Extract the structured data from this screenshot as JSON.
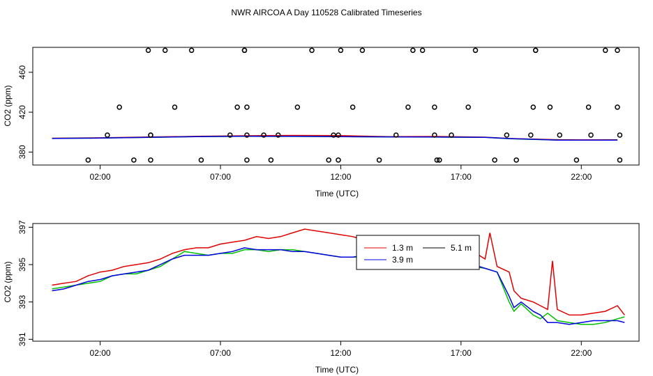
{
  "title": "NWR AIRCOA A  Day 110528  Calibrated Timeseries",
  "colors": {
    "series_1": "#e00000",
    "series_2": "#00c000",
    "series_3": "#0000e0",
    "points": "#000000",
    "axes": "#000000"
  },
  "chart_data": [
    {
      "type": "scatter",
      "xlabel": "Time (UTC)",
      "ylabel": "CO2 (ppm)",
      "x_ticks": [
        "02:00",
        "07:00",
        "12:00",
        "17:00",
        "22:00"
      ],
      "y_ticks": [
        "380",
        "420",
        "460"
      ],
      "xlim_hours": [
        -0.8,
        24.4
      ],
      "ylim": [
        367,
        485
      ],
      "points_x_hours": [
        1.5,
        2.3,
        2.8,
        3.4,
        4.0,
        4.1,
        4.1,
        4.1,
        4.7,
        5.1,
        5.8,
        6.2,
        7.4,
        7.7,
        8.0,
        8.0,
        8.1,
        8.1,
        8.1,
        8.8,
        9.1,
        9.4,
        10.2,
        10.8,
        11.5,
        11.7,
        11.9,
        11.9,
        12.0,
        12.5,
        12.9,
        13.6,
        14.3,
        14.8,
        15.0,
        15.4,
        15.9,
        15.9,
        16.0,
        16.1,
        16.6,
        17.3,
        17.6,
        18.4,
        18.9,
        19.3,
        19.9,
        20.0,
        20.1,
        20.1,
        20.7,
        21.1,
        21.8,
        22.3,
        22.4,
        23.0,
        23.5,
        23.5,
        23.6,
        23.6
      ],
      "points_y": [
        372,
        397,
        425,
        372,
        482,
        397,
        372,
        397,
        482,
        425,
        482,
        372,
        397,
        425,
        482,
        482,
        425,
        397,
        372,
        397,
        372,
        397,
        425,
        482,
        372,
        397,
        372,
        397,
        482,
        425,
        482,
        372,
        397,
        425,
        482,
        482,
        425,
        397,
        372,
        372,
        397,
        425,
        482,
        372,
        397,
        372,
        397,
        425,
        482,
        482,
        425,
        397,
        372,
        425,
        397,
        482,
        482,
        425,
        397,
        372
      ],
      "series": [
        {
          "x_hours": [
            0.0,
            2.0,
            4.0,
            6.0,
            8.0,
            10.0,
            12.0,
            14.0,
            16.0,
            18.0,
            19.0,
            20.0,
            21.0,
            22.0,
            23.5
          ],
          "values": [
            393.9,
            394.3,
            395.1,
            395.8,
            396.3,
            396.7,
            396.5,
            395.5,
            395.6,
            394.9,
            393.6,
            393.0,
            392.4,
            392.2,
            392.3
          ]
        },
        {
          "x_hours": [
            0.0,
            2.0,
            4.0,
            6.0,
            8.0,
            10.0,
            12.0,
            14.0,
            16.0,
            18.0,
            19.0,
            20.0,
            21.0,
            22.0,
            23.5
          ],
          "values": [
            393.7,
            394.0,
            394.8,
            395.5,
            395.8,
            395.7,
            395.4,
            395.2,
            395.0,
            394.8,
            393.3,
            392.6,
            392.1,
            392.0,
            392.1
          ]
        },
        {
          "x_hours": [
            0.0,
            2.0,
            4.0,
            6.0,
            8.0,
            10.0,
            12.0,
            14.0,
            16.0,
            18.0,
            19.0,
            20.0,
            21.0,
            22.0,
            23.5
          ],
          "values": [
            393.6,
            394.0,
            394.8,
            395.5,
            395.9,
            395.8,
            395.4,
            395.2,
            395.1,
            394.8,
            393.5,
            392.8,
            392.0,
            391.9,
            392.0
          ]
        }
      ]
    },
    {
      "type": "line",
      "xlabel": "Time (UTC)",
      "ylabel": "CO2 (ppm)",
      "x_ticks": [
        "02:00",
        "07:00",
        "12:00",
        "17:00",
        "22:00"
      ],
      "y_ticks": [
        "391",
        "393",
        "395",
        "397"
      ],
      "xlim_hours": [
        -0.8,
        24.4
      ],
      "ylim": [
        390.9,
        397.2
      ],
      "legend": {
        "placement": "center-right",
        "entries": [
          "1.3 m",
          "5.1 m",
          "3.9 m"
        ]
      },
      "series": [
        {
          "name": "1.3 m",
          "x_hours": [
            0.0,
            0.5,
            1.0,
            1.5,
            2.0,
            2.5,
            3.0,
            3.5,
            4.0,
            4.5,
            5.0,
            5.5,
            6.0,
            6.5,
            7.0,
            7.5,
            8.0,
            8.5,
            9.0,
            9.5,
            10.0,
            10.5,
            11.0,
            11.5,
            12.0,
            12.5,
            13.0,
            13.5,
            14.0,
            14.5,
            15.0,
            15.5,
            16.0,
            16.5,
            17.0,
            17.5,
            18.0,
            18.2,
            18.5,
            19.0,
            19.2,
            19.5,
            20.0,
            20.3,
            20.6,
            20.8,
            21.0,
            21.5,
            22.0,
            22.5,
            23.0,
            23.5,
            23.8
          ],
          "values": [
            393.9,
            394.0,
            394.1,
            394.4,
            394.6,
            394.7,
            394.9,
            395.0,
            395.1,
            395.3,
            395.6,
            395.8,
            395.9,
            395.9,
            396.1,
            396.2,
            396.3,
            396.5,
            396.4,
            396.5,
            396.7,
            396.9,
            396.8,
            396.7,
            396.6,
            396.5,
            396.3,
            396.0,
            395.8,
            395.6,
            395.7,
            395.5,
            395.6,
            395.6,
            395.4,
            395.7,
            395.3,
            396.7,
            394.9,
            394.6,
            393.6,
            393.2,
            393.0,
            392.8,
            392.6,
            395.2,
            392.6,
            392.3,
            392.3,
            392.4,
            392.5,
            392.8,
            392.3
          ]
        },
        {
          "name": "3.9 m",
          "x_hours": [
            0.0,
            0.5,
            1.0,
            1.5,
            2.0,
            2.5,
            3.0,
            3.5,
            4.0,
            4.5,
            5.0,
            5.5,
            6.0,
            6.5,
            7.0,
            7.5,
            8.0,
            8.5,
            9.0,
            9.5,
            10.0,
            10.5,
            11.0,
            11.5,
            12.0,
            12.5,
            13.0,
            13.5,
            14.0,
            14.5,
            15.0,
            15.5,
            16.0,
            16.5,
            17.0,
            17.5,
            18.0,
            18.5,
            19.0,
            19.2,
            19.5,
            20.0,
            20.3,
            20.6,
            21.0,
            21.5,
            22.0,
            22.5,
            23.0,
            23.5,
            23.8
          ],
          "values": [
            393.7,
            393.8,
            393.9,
            394.0,
            394.1,
            394.4,
            394.5,
            394.5,
            394.7,
            394.9,
            395.3,
            395.7,
            395.6,
            395.5,
            395.6,
            395.6,
            395.8,
            395.8,
            395.7,
            395.8,
            395.8,
            395.7,
            395.6,
            395.5,
            395.4,
            395.4,
            395.4,
            395.3,
            395.2,
            395.1,
            395.2,
            395.0,
            395.0,
            395.1,
            395.0,
            394.9,
            394.8,
            394.6,
            393.0,
            392.5,
            392.9,
            392.3,
            392.1,
            392.4,
            392.0,
            391.9,
            391.8,
            391.8,
            391.9,
            392.1,
            392.2
          ]
        },
        {
          "name": "5.1 m",
          "x_hours": [
            0.0,
            0.5,
            1.0,
            1.5,
            2.0,
            2.5,
            3.0,
            3.5,
            4.0,
            4.5,
            5.0,
            5.5,
            6.0,
            6.5,
            7.0,
            7.5,
            8.0,
            8.5,
            9.0,
            9.5,
            10.0,
            10.5,
            11.0,
            11.5,
            12.0,
            12.5,
            13.0,
            13.5,
            14.0,
            14.5,
            15.0,
            15.5,
            16.0,
            16.5,
            17.0,
            17.5,
            18.0,
            18.5,
            19.0,
            19.2,
            19.5,
            20.0,
            20.3,
            20.6,
            21.0,
            21.5,
            22.0,
            22.5,
            23.0,
            23.5,
            23.8
          ],
          "values": [
            393.6,
            393.7,
            393.9,
            394.1,
            394.2,
            394.4,
            394.5,
            394.6,
            394.7,
            395.0,
            395.3,
            395.5,
            395.5,
            395.5,
            395.6,
            395.7,
            395.9,
            395.8,
            395.8,
            395.8,
            395.7,
            395.7,
            395.6,
            395.5,
            395.4,
            395.4,
            395.5,
            395.4,
            395.3,
            395.2,
            395.2,
            395.1,
            395.2,
            395.1,
            395.1,
            395.0,
            394.8,
            394.6,
            393.3,
            392.7,
            393.0,
            392.5,
            392.3,
            391.9,
            391.9,
            391.8,
            391.9,
            392.0,
            392.0,
            392.0,
            391.9
          ]
        }
      ]
    }
  ]
}
